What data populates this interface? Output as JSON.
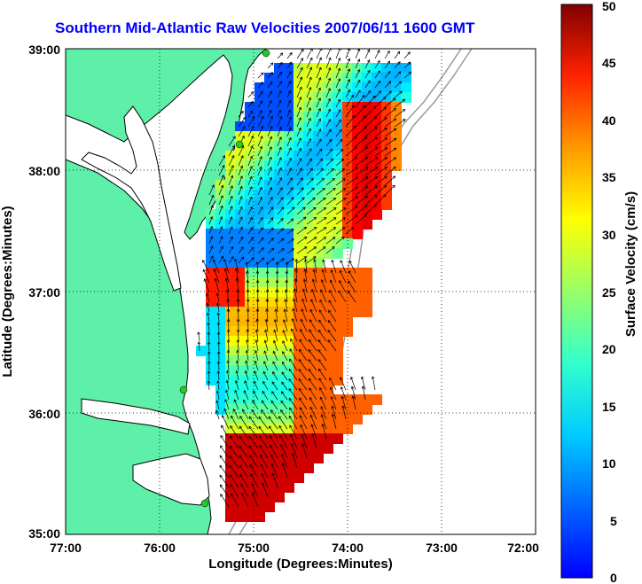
{
  "title": "Southern Mid-Atlantic Raw Velocities 2007/06/11 1600 GMT",
  "x_axis": {
    "label": "Longitude (Degrees:Minutes)",
    "ticks": [
      "77:00",
      "76:00",
      "75:00",
      "74:00",
      "73:00",
      "72:00"
    ]
  },
  "y_axis": {
    "label": "Latitude (Degrees:Minutes)",
    "ticks": [
      "39:00",
      "38:00",
      "37:00",
      "36:00",
      "35:00"
    ]
  },
  "colorbar": {
    "label": "Surface Velocity (cm/s)",
    "ticks": [
      "50",
      "45",
      "40",
      "35",
      "30",
      "25",
      "20",
      "15",
      "10",
      "5",
      "0"
    ],
    "range": [
      0,
      50
    ],
    "colormap": "jet"
  },
  "map": {
    "lon_range": [
      -77,
      -72
    ],
    "lat_range": [
      35,
      39
    ],
    "grid": "dotted",
    "land_color": "#5ef0a8",
    "coast_color": "#000000",
    "isobath_color": "#9a9a9a",
    "station_color": "#22cc22",
    "arrow_color": "#000000"
  }
}
